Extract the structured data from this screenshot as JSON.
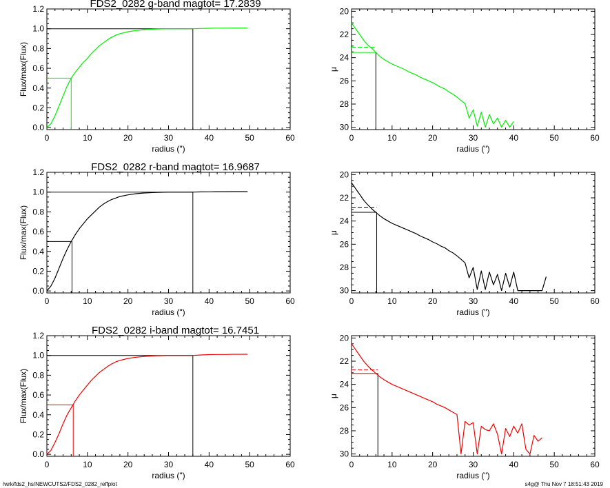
{
  "footer": {
    "left": "/wrk/fds2_hs/NEWCUTS2/FDS2_0282_reffplot",
    "right": "s4g@  Thu Nov  7 18:51:43 2019"
  },
  "colors": {
    "g": "#00ee00",
    "r": "#000000",
    "i": "#ee0000",
    "axis": "#000000"
  },
  "chart_data": [
    {
      "type": "line",
      "panel": "growth-curve",
      "band": "g",
      "title": "FDS2_0282 g-band  magtot=     17.2839",
      "xlabel": "radius (\")",
      "ylabel": "Flux/max(Flux)",
      "xlim": [
        0,
        60
      ],
      "ylim": [
        -0.02,
        1.2
      ],
      "xticks": [
        "0",
        "10",
        "20",
        "30",
        "40",
        "50",
        "60"
      ],
      "yticks": [
        "0.0",
        "0.2",
        "0.4",
        "0.6",
        "0.8",
        "1.0",
        "1.2"
      ],
      "ytick_values": [
        0,
        0.2,
        0.4,
        0.6,
        0.8,
        1.0,
        1.2
      ],
      "series": [
        {
          "color": "#00ee00",
          "x": [
            0,
            1,
            2,
            3,
            4,
            5,
            6,
            7,
            8,
            9,
            10,
            11,
            12,
            13,
            14,
            15,
            16,
            17,
            18,
            20,
            22,
            24,
            26,
            28,
            30,
            32,
            34,
            36,
            38,
            40,
            42,
            44,
            46,
            48,
            49.5
          ],
          "y": [
            0,
            0.04,
            0.12,
            0.22,
            0.32,
            0.42,
            0.5,
            0.56,
            0.61,
            0.66,
            0.7,
            0.75,
            0.79,
            0.83,
            0.86,
            0.89,
            0.915,
            0.935,
            0.95,
            0.97,
            0.982,
            0.99,
            0.995,
            0.998,
            1.0,
            1.0,
            1.0,
            1.0,
            1.003,
            1.005,
            1.006,
            1.006,
            1.007,
            1.007,
            1.007
          ]
        }
      ],
      "markers": {
        "r_half": 6.0,
        "f_half": 0.5,
        "r_tot": 36.0,
        "f_tot": 1.0
      }
    },
    {
      "type": "line",
      "panel": "surface-brightness",
      "band": "g",
      "xlabel": "radius (\")",
      "ylabel": "μ",
      "xlim": [
        0,
        60
      ],
      "ylim": [
        30.2,
        19.8
      ],
      "xticks": [
        "0",
        "10",
        "20",
        "30",
        "40",
        "50",
        "60"
      ],
      "yticks": [
        "20",
        "22",
        "24",
        "26",
        "28",
        "30"
      ],
      "ytick_values": [
        20,
        22,
        24,
        26,
        28,
        30
      ],
      "series": [
        {
          "color": "#00ee00",
          "x": [
            0,
            1,
            2,
            3,
            4,
            5,
            6,
            7,
            8,
            9,
            10,
            11,
            12,
            13,
            14,
            15,
            16,
            17,
            18,
            19,
            20,
            21,
            22,
            23,
            24,
            25,
            26,
            27,
            28,
            29,
            30,
            31,
            32,
            33,
            34,
            35,
            36,
            37,
            38,
            39,
            40
          ],
          "y": [
            21.0,
            21.5,
            22.0,
            22.5,
            22.9,
            23.2,
            23.55,
            23.9,
            24.15,
            24.35,
            24.55,
            24.7,
            24.85,
            25.0,
            25.2,
            25.35,
            25.5,
            25.7,
            25.85,
            26.0,
            26.15,
            26.35,
            26.55,
            26.7,
            26.95,
            27.15,
            27.4,
            27.7,
            27.95,
            29.2,
            28.5,
            29.9,
            28.7,
            30.0,
            28.9,
            29.7,
            29.2,
            30.0,
            29.4,
            30.0,
            29.5
          ]
        }
      ],
      "markers": {
        "r_half": 6.0,
        "mu_half": 23.55,
        "mu_mean": 23.1
      }
    },
    {
      "type": "line",
      "panel": "growth-curve",
      "band": "r",
      "title": "FDS2_0282 r-band  magtot=     16.9687",
      "xlabel": "radius (\")",
      "ylabel": "Flux/max(Flux)",
      "xlim": [
        0,
        60
      ],
      "ylim": [
        -0.02,
        1.2
      ],
      "xticks": [
        "0",
        "10",
        "20",
        "30",
        "40",
        "50",
        "60"
      ],
      "yticks": [
        "0.0",
        "0.2",
        "0.4",
        "0.6",
        "0.8",
        "1.0",
        "1.2"
      ],
      "ytick_values": [
        0,
        0.2,
        0.4,
        0.6,
        0.8,
        1.0,
        1.2
      ],
      "series": [
        {
          "color": "#000000",
          "x": [
            0,
            1,
            2,
            3,
            4,
            5,
            6,
            7,
            8,
            9,
            10,
            11,
            12,
            13,
            14,
            15,
            16,
            17,
            18,
            20,
            22,
            24,
            26,
            28,
            30,
            32,
            34,
            36,
            38,
            40,
            42,
            44,
            46,
            48,
            49.5
          ],
          "y": [
            0,
            0.05,
            0.13,
            0.23,
            0.33,
            0.42,
            0.5,
            0.57,
            0.63,
            0.68,
            0.73,
            0.77,
            0.81,
            0.85,
            0.88,
            0.905,
            0.925,
            0.94,
            0.955,
            0.972,
            0.984,
            0.991,
            0.995,
            0.998,
            1.0,
            1.0,
            1.0,
            1.0,
            1.002,
            1.003,
            1.004,
            1.004,
            1.005,
            1.005,
            1.005
          ]
        }
      ],
      "markers": {
        "r_half": 6.2,
        "f_half": 0.5,
        "r_tot": 36.0,
        "f_tot": 1.0
      }
    },
    {
      "type": "line",
      "panel": "surface-brightness",
      "band": "r",
      "xlabel": "radius (\")",
      "ylabel": "μ",
      "xlim": [
        0,
        60
      ],
      "ylim": [
        30.2,
        19.8
      ],
      "xticks": [
        "0",
        "10",
        "20",
        "30",
        "40",
        "50",
        "60"
      ],
      "yticks": [
        "20",
        "22",
        "24",
        "26",
        "28",
        "30"
      ],
      "ytick_values": [
        20,
        22,
        24,
        26,
        28,
        30
      ],
      "series": [
        {
          "color": "#000000",
          "x": [
            0,
            1,
            2,
            3,
            4,
            5,
            6,
            7,
            8,
            9,
            10,
            11,
            12,
            13,
            14,
            15,
            16,
            17,
            18,
            19,
            20,
            21,
            22,
            23,
            24,
            25,
            26,
            27,
            28,
            29,
            30,
            31,
            32,
            33,
            34,
            35,
            36,
            37,
            38,
            39,
            40,
            41,
            47,
            48
          ],
          "y": [
            20.7,
            21.2,
            21.7,
            22.2,
            22.6,
            22.95,
            23.25,
            23.55,
            23.8,
            24.0,
            24.2,
            24.35,
            24.5,
            24.65,
            24.8,
            24.95,
            25.1,
            25.3,
            25.45,
            25.6,
            25.8,
            25.95,
            26.15,
            26.3,
            26.55,
            26.75,
            27.0,
            27.3,
            27.6,
            28.9,
            28.0,
            29.9,
            28.3,
            29.9,
            28.4,
            29.5,
            28.6,
            30.0,
            28.5,
            29.7,
            28.4,
            30.0,
            30.0,
            28.8
          ]
        }
      ],
      "markers": {
        "r_half": 6.2,
        "mu_half": 23.25,
        "mu_mean": 22.85
      }
    },
    {
      "type": "line",
      "panel": "growth-curve",
      "band": "i",
      "title": "FDS2_0282 i-band  magtot=     16.7451",
      "xlabel": "radius (\")",
      "ylabel": "Flux/max(Flux)",
      "xlim": [
        0,
        60
      ],
      "ylim": [
        -0.02,
        1.2
      ],
      "xticks": [
        "0",
        "10",
        "20",
        "30",
        "40",
        "50",
        "60"
      ],
      "yticks": [
        "0.0",
        "0.2",
        "0.4",
        "0.6",
        "0.8",
        "1.0",
        "1.2"
      ],
      "ytick_values": [
        0,
        0.2,
        0.4,
        0.6,
        0.8,
        1.0,
        1.2
      ],
      "series": [
        {
          "color": "#ee0000",
          "x": [
            0,
            1,
            2,
            3,
            4,
            5,
            6,
            7,
            8,
            9,
            10,
            11,
            12,
            13,
            14,
            15,
            16,
            17,
            18,
            20,
            22,
            24,
            26,
            28,
            30,
            32,
            34,
            36,
            38,
            40,
            42,
            44,
            46,
            48,
            49.5
          ],
          "y": [
            0,
            0.04,
            0.12,
            0.21,
            0.31,
            0.4,
            0.47,
            0.54,
            0.6,
            0.65,
            0.7,
            0.75,
            0.79,
            0.83,
            0.86,
            0.89,
            0.915,
            0.935,
            0.95,
            0.97,
            0.982,
            0.99,
            0.995,
            0.998,
            1.0,
            1.0,
            1.0,
            1.0,
            1.005,
            1.008,
            1.01,
            1.01,
            1.012,
            1.012,
            1.012
          ]
        }
      ],
      "markers": {
        "r_half": 6.5,
        "f_half": 0.5,
        "r_tot": 36.0,
        "f_tot": 1.0
      }
    },
    {
      "type": "line",
      "panel": "surface-brightness",
      "band": "i",
      "xlabel": "radius (\")",
      "ylabel": "μ",
      "xlim": [
        0,
        60
      ],
      "ylim": [
        30.2,
        19.8
      ],
      "xticks": [
        "0",
        "10",
        "20",
        "30",
        "40",
        "50",
        "60"
      ],
      "yticks": [
        "20",
        "22",
        "24",
        "26",
        "28",
        "30"
      ],
      "ytick_values": [
        20,
        22,
        24,
        26,
        28,
        30
      ],
      "series": [
        {
          "color": "#ee0000",
          "x": [
            0,
            1,
            2,
            3,
            4,
            5,
            6,
            7,
            8,
            9,
            10,
            11,
            12,
            13,
            14,
            15,
            16,
            17,
            18,
            19,
            20,
            21,
            22,
            23,
            24,
            25,
            26,
            27,
            28,
            29,
            30,
            31,
            32,
            33,
            34,
            35,
            36,
            37,
            38,
            39,
            40,
            41,
            42,
            43,
            44,
            45,
            46,
            47
          ],
          "y": [
            20.5,
            21.0,
            21.5,
            22.0,
            22.4,
            22.75,
            23.05,
            23.35,
            23.6,
            23.8,
            24.0,
            24.15,
            24.3,
            24.45,
            24.6,
            24.75,
            24.9,
            25.05,
            25.2,
            25.35,
            25.5,
            25.7,
            25.85,
            26.0,
            26.2,
            26.4,
            26.6,
            30.0,
            27.2,
            27.5,
            27.3,
            30.0,
            27.6,
            27.9,
            28.0,
            27.4,
            28.3,
            30.0,
            27.8,
            28.5,
            27.6,
            28.2,
            27.4,
            29.6,
            30.0,
            28.4,
            28.9,
            28.6
          ]
        }
      ],
      "markers": {
        "r_half": 6.5,
        "mu_half": 23.05,
        "mu_mean": 22.75
      }
    }
  ]
}
